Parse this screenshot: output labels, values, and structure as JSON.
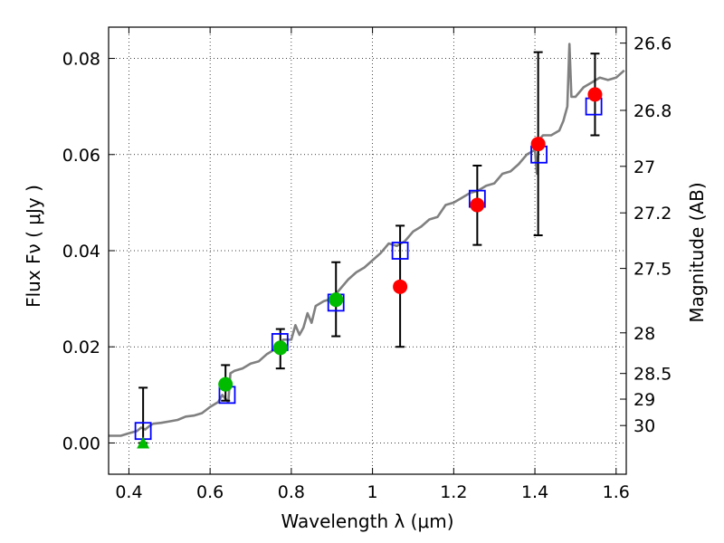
{
  "chart_data": {
    "type": "scatter",
    "xlabel": "Wavelength  λ (μm)",
    "ylabel": "Flux  Fν  ( μJy )",
    "y2label": "Magnitude (AB)",
    "xlim": [
      0.35,
      1.625
    ],
    "ylim": [
      -0.0065,
      0.0865
    ],
    "x_ticks": [
      0.4,
      0.6,
      0.8,
      1.0,
      1.2,
      1.4,
      1.6
    ],
    "x_tick_labels": [
      "0.4",
      "0.6",
      "0.8",
      "1",
      "1.2",
      "1.4",
      "1.6"
    ],
    "y_ticks": [
      0.0,
      0.02,
      0.04,
      0.06,
      0.08
    ],
    "y_tick_labels": [
      "0.00",
      "0.02",
      "0.04",
      "0.06",
      "0.08"
    ],
    "y2_ticks": [
      {
        "mag": 26.6,
        "label": "26.6"
      },
      {
        "mag": 26.8,
        "label": "26.8"
      },
      {
        "mag": 27.0,
        "label": "27"
      },
      {
        "mag": 27.2,
        "label": "27.2"
      },
      {
        "mag": 27.5,
        "label": "27.5"
      },
      {
        "mag": 28.0,
        "label": "28"
      },
      {
        "mag": 28.5,
        "label": "28.5"
      },
      {
        "mag": 29.0,
        "label": "29"
      },
      {
        "mag": 30.0,
        "label": "30"
      }
    ],
    "grid": true,
    "colors": {
      "spectrum": "#808080",
      "model_box": "#0000ff",
      "ground_point": "#00bb00",
      "space_point": "#ff0000",
      "error_bar": "#000000"
    },
    "series": [
      {
        "type": "line",
        "x": [
          0.35,
          0.38,
          0.4,
          0.42,
          0.43,
          0.44,
          0.45,
          0.46,
          0.48,
          0.5,
          0.52,
          0.54,
          0.56,
          0.58,
          0.6,
          0.62,
          0.63,
          0.645,
          0.65,
          0.66,
          0.68,
          0.7,
          0.72,
          0.74,
          0.76,
          0.78,
          0.8,
          0.81,
          0.82,
          0.83,
          0.84,
          0.85,
          0.86,
          0.88,
          0.9,
          0.92,
          0.94,
          0.96,
          0.98,
          1.0,
          1.02,
          1.04,
          1.06,
          1.08,
          1.1,
          1.12,
          1.14,
          1.16,
          1.18,
          1.2,
          1.22,
          1.24,
          1.26,
          1.28,
          1.3,
          1.32,
          1.34,
          1.36,
          1.38,
          1.4,
          1.405,
          1.41,
          1.42,
          1.44,
          1.46,
          1.47,
          1.48,
          1.485,
          1.49,
          1.5,
          1.52,
          1.54,
          1.56,
          1.58,
          1.6,
          1.62
        ],
        "y": [
          0.0015,
          0.0015,
          0.002,
          0.0025,
          0.0032,
          0.0028,
          0.0035,
          0.004,
          0.0042,
          0.0045,
          0.0048,
          0.0055,
          0.0057,
          0.0062,
          0.0075,
          0.0085,
          0.01,
          0.0085,
          0.0145,
          0.015,
          0.0155,
          0.0165,
          0.017,
          0.0185,
          0.0195,
          0.0215,
          0.0215,
          0.0245,
          0.0225,
          0.024,
          0.027,
          0.025,
          0.0285,
          0.0295,
          0.03,
          0.032,
          0.034,
          0.0355,
          0.0365,
          0.038,
          0.0395,
          0.0415,
          0.041,
          0.042,
          0.044,
          0.045,
          0.0465,
          0.047,
          0.0495,
          0.05,
          0.051,
          0.052,
          0.0525,
          0.0535,
          0.054,
          0.056,
          0.0565,
          0.058,
          0.06,
          0.061,
          0.056,
          0.063,
          0.064,
          0.064,
          0.065,
          0.067,
          0.07,
          0.083,
          0.072,
          0.072,
          0.074,
          0.075,
          0.076,
          0.0755,
          0.076,
          0.0775
        ]
      },
      {
        "type": "box",
        "x": [
          0.435,
          0.642,
          0.772,
          0.91,
          1.068,
          1.258,
          1.41,
          1.545
        ],
        "y": [
          0.0025,
          0.01,
          0.021,
          0.0292,
          0.04,
          0.0508,
          0.06,
          0.07
        ]
      },
      {
        "type": "triangle_marker",
        "x": [
          0.435
        ],
        "y": [
          0.0
        ]
      },
      {
        "type": "point_marker",
        "colored": "ground",
        "x": [
          0.638,
          0.773,
          0.91
        ],
        "y": [
          0.0122,
          0.0198,
          0.0298
        ]
      },
      {
        "type": "point_marker",
        "colored": "space",
        "x": [
          1.068,
          1.258,
          1.408,
          1.548
        ],
        "y": [
          0.0325,
          0.0495,
          0.0622,
          0.0725
        ]
      },
      {
        "type": "error_bar",
        "x": [
          0.435,
          0.638,
          0.773,
          0.91,
          1.068,
          1.258,
          1.408,
          1.548
        ],
        "ylow": [
          0.0,
          0.0088,
          0.0155,
          0.0222,
          0.02,
          0.0412,
          0.0432,
          0.064
        ],
        "yhigh": [
          0.0115,
          0.0162,
          0.0237,
          0.0376,
          0.0452,
          0.0577,
          0.0813,
          0.081
        ]
      }
    ]
  }
}
